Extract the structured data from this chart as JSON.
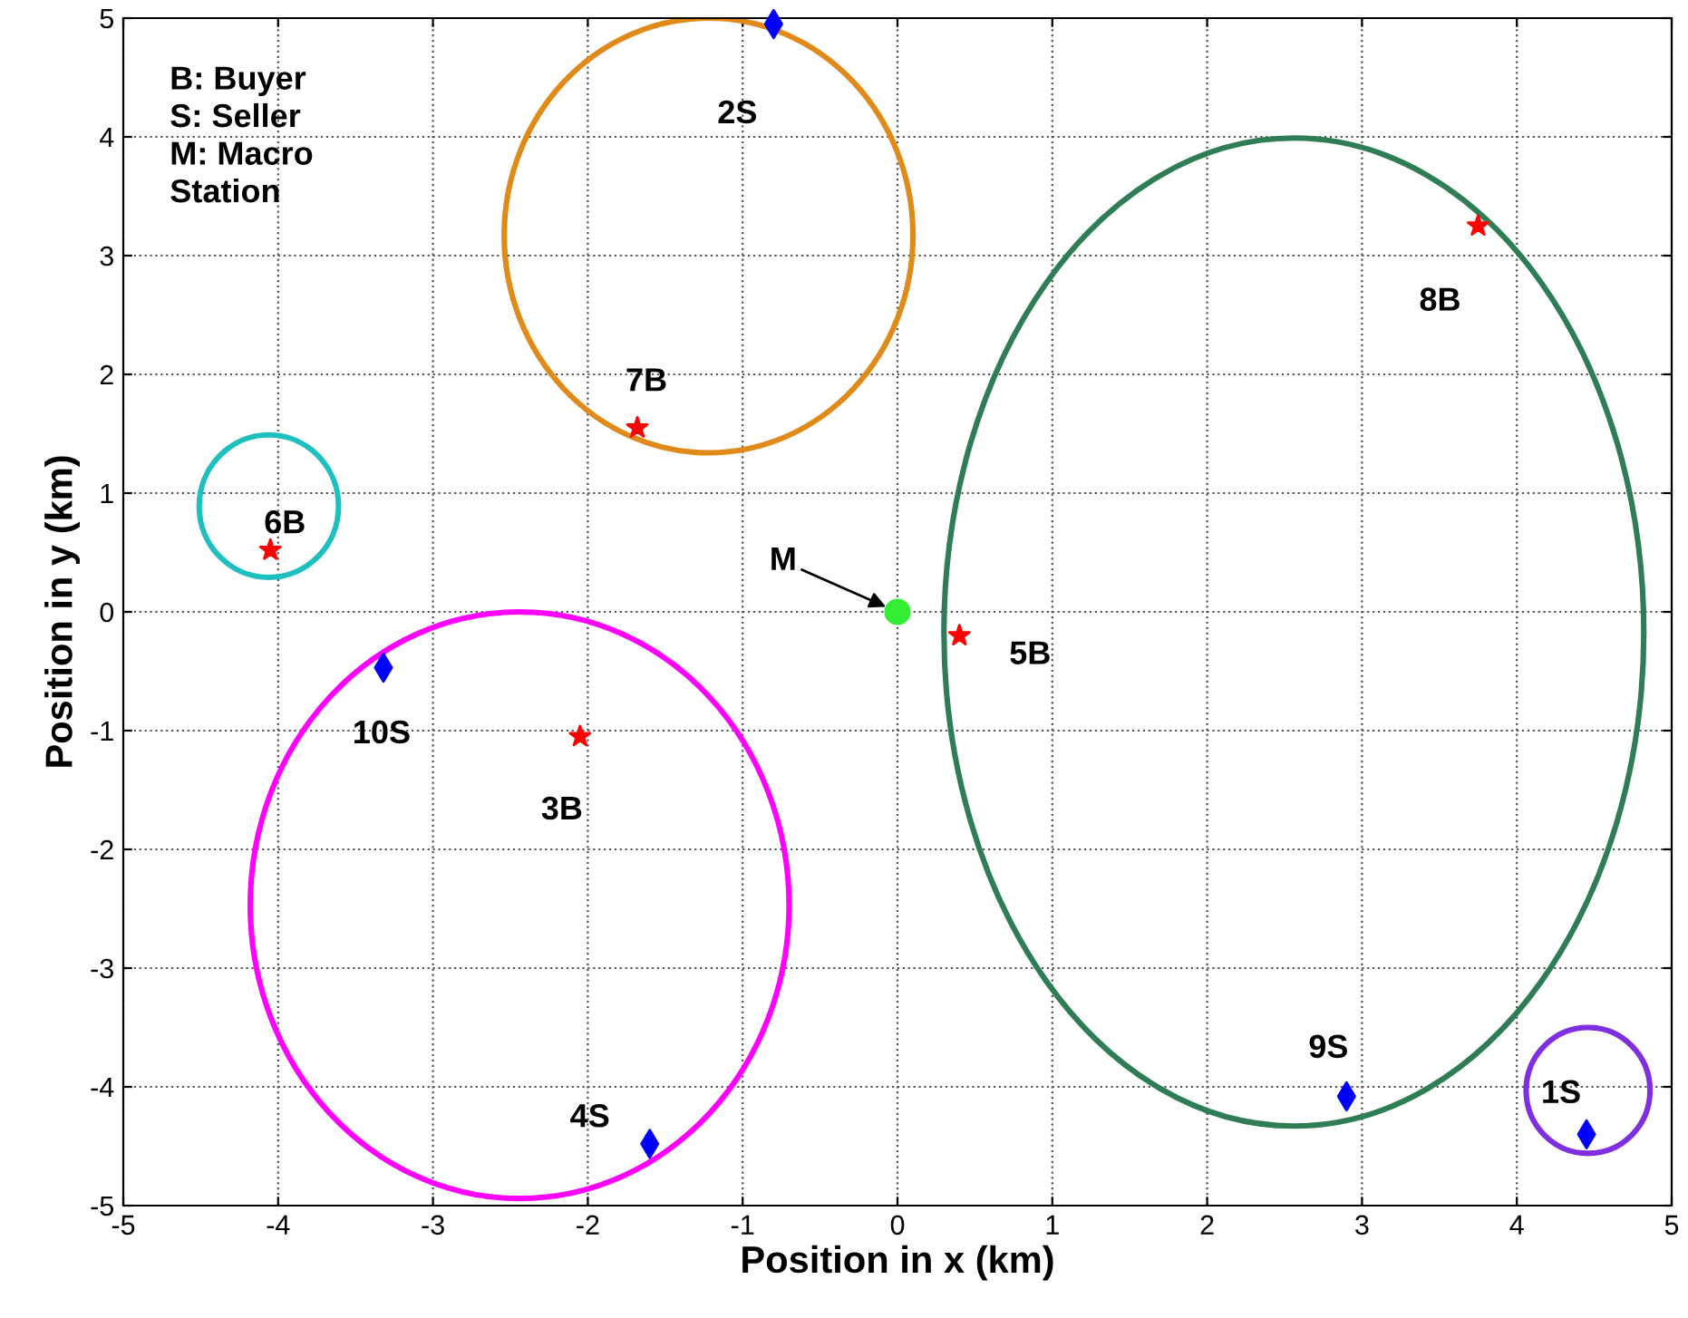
{
  "chart_data": {
    "type": "scatter",
    "xlabel": "Position in x (km)",
    "ylabel": "Position in y (km)",
    "xlim": [
      -5,
      5
    ],
    "ylim": [
      -5,
      5
    ],
    "xticks": [
      -5,
      -4,
      -3,
      -2,
      -1,
      0,
      1,
      2,
      3,
      4,
      5
    ],
    "yticks": [
      -5,
      -4,
      -3,
      -2,
      -1,
      0,
      1,
      2,
      3,
      4,
      5
    ],
    "grid": true,
    "series": [
      {
        "color": "#ff0000",
        "marker": "star",
        "x": [
          3.75,
          -1.68,
          -4.05,
          0.4,
          -2.05
        ],
        "values": [
          3.25,
          1.55,
          0.52,
          -0.2,
          -1.05
        ]
      },
      {
        "color": "#0000ff",
        "marker": "diamond",
        "x": [
          -0.8,
          -3.32,
          -1.6,
          2.9,
          4.45
        ],
        "values": [
          4.95,
          -0.47,
          -4.48,
          -4.08,
          -4.4
        ]
      },
      {
        "color": "#33ee33",
        "marker": "circle",
        "x": [
          0
        ],
        "values": [
          0
        ]
      }
    ],
    "annotations": [
      "B: Buyer\nS: Seller\nM: Macro\nStation",
      {
        "text": "8B",
        "x": 3.75,
        "y": 3.25
      },
      {
        "text": "7B",
        "x": -1.68,
        "y": 1.55
      },
      {
        "text": "6B",
        "x": -4.05,
        "y": 0.52
      },
      {
        "text": "5B",
        "x": 0.4,
        "y": -0.2
      },
      {
        "text": "3B",
        "x": -2.05,
        "y": -1.05
      },
      {
        "text": "2S",
        "x": -0.8,
        "y": 4.95
      },
      {
        "text": "10S",
        "x": -3.32,
        "y": -0.47
      },
      {
        "text": "4S",
        "x": -1.6,
        "y": -4.48
      },
      {
        "text": "9S",
        "x": 2.9,
        "y": -4.08
      },
      {
        "text": "1S",
        "x": 4.45,
        "y": -4.4
      },
      {
        "text": "M",
        "x": 0,
        "y": 0
      }
    ]
  }
}
